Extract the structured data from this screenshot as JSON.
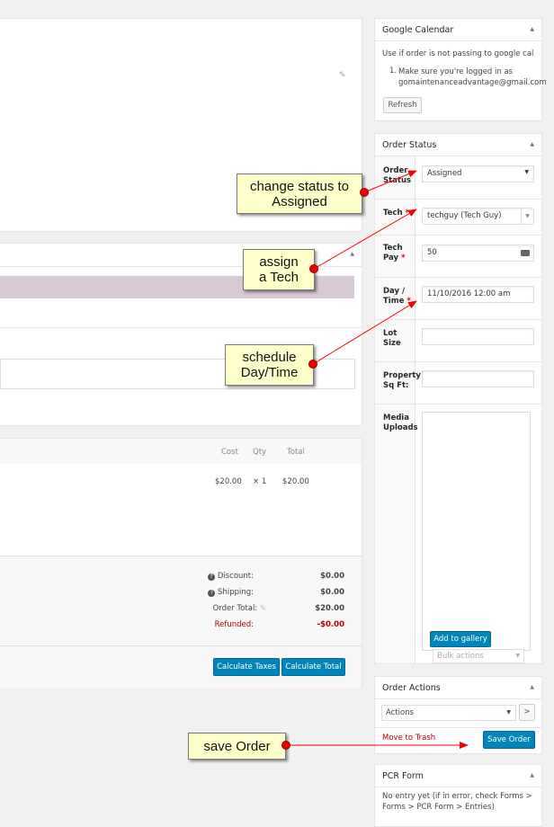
{
  "google_calendar": {
    "title": "Google Calendar",
    "intro": "Use if order is not passing to google cal",
    "steps": [
      "Make sure you're logged in as gomaintenanceadvantage@gmail.com"
    ],
    "refresh_label": "Refresh"
  },
  "order_status": {
    "title": "Order Status",
    "fields": {
      "status": {
        "label": "Order Status",
        "value": "Assigned"
      },
      "tech": {
        "label": "Tech",
        "value": "techguy (Tech Guy)"
      },
      "tech_pay": {
        "label": "Tech Pay",
        "value": "50"
      },
      "day_time": {
        "label": "Day / Time",
        "value": "11/10/2016 12:00 am"
      },
      "lot_size": {
        "label": "Lot Size",
        "value": ""
      },
      "sqft": {
        "label": "Property Sq Ft:",
        "value": ""
      },
      "media": {
        "label": "Media Uploads"
      }
    },
    "add_gallery_label": "Add to gallery",
    "bulk_actions": "Bulk actions"
  },
  "order_actions": {
    "title": "Order Actions",
    "select_value": "Actions",
    "go_label": ">",
    "trash_label": "Move to Trash",
    "save_label": "Save Order"
  },
  "pcr_form": {
    "title": "PCR Form",
    "text": "No entry yet (if in error, check Forms > Forms > PCR Form > Entries)"
  },
  "items": {
    "columns": [
      "Cost",
      "Qty",
      "Total"
    ],
    "row": {
      "cost": "$20.00",
      "qty": "× 1",
      "total": "$20.00"
    },
    "totals": [
      {
        "label": "Discount:",
        "value": "$0.00"
      },
      {
        "label": "Shipping:",
        "value": "$0.00"
      },
      {
        "label": "Order Total:",
        "value": "$20.00"
      },
      {
        "label": "Refunded:",
        "value": "-$0.00"
      }
    ],
    "calc_taxes": "Calculate Taxes",
    "calc_total": "Calculate Total"
  },
  "callouts": {
    "status": "change status to\nAssigned",
    "tech": "assign\na Tech",
    "time": "schedule\nDay/Time",
    "save": "save Order"
  },
  "colors": {
    "primary": "#0085ba",
    "refund": "#a00",
    "callout_bg": "#ffffcc",
    "arrow": "#ff0000"
  }
}
